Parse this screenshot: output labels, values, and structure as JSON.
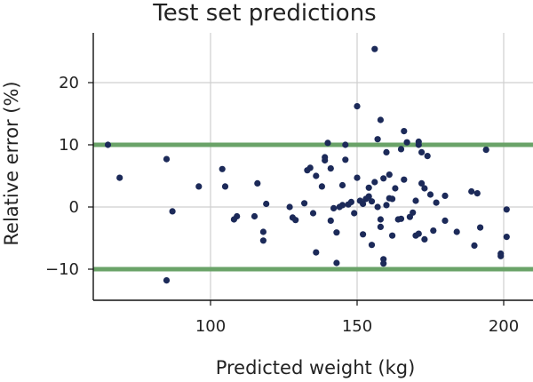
{
  "chart_data": {
    "type": "scatter",
    "title": "Test set predictions",
    "xlabel": "Predicted weight (kg)",
    "ylabel": "Relative error (%)",
    "xlim": [
      60,
      210
    ],
    "ylim": [
      -15,
      28
    ],
    "xticks": [
      100,
      150,
      200
    ],
    "yticks": [
      -10,
      0,
      10,
      20
    ],
    "xtick_labels": [
      "100",
      "150",
      "200"
    ],
    "ytick_labels": [
      "−10",
      "0",
      "10",
      "20"
    ],
    "grid": true,
    "reference_lines": [
      {
        "y": 10,
        "color": "#6aa368"
      },
      {
        "y": -10,
        "color": "#6aa368"
      }
    ],
    "colors": {
      "points": "#1c2a59",
      "reference": "#6aa368",
      "grid": "#cfcfcf",
      "axis": "#111111"
    },
    "points": [
      {
        "x": 65,
        "y": 10.0
      },
      {
        "x": 69,
        "y": 4.7
      },
      {
        "x": 85,
        "y": 7.7
      },
      {
        "x": 85,
        "y": -11.8
      },
      {
        "x": 87,
        "y": -0.7
      },
      {
        "x": 96,
        "y": 3.3
      },
      {
        "x": 104,
        "y": 6.1
      },
      {
        "x": 105,
        "y": 3.3
      },
      {
        "x": 108,
        "y": -2.0
      },
      {
        "x": 109,
        "y": -1.5
      },
      {
        "x": 115,
        "y": -1.5
      },
      {
        "x": 116,
        "y": 3.8
      },
      {
        "x": 118,
        "y": -5.4
      },
      {
        "x": 118,
        "y": -4.0
      },
      {
        "x": 119,
        "y": 0.5
      },
      {
        "x": 127,
        "y": 0.0
      },
      {
        "x": 128,
        "y": -1.7
      },
      {
        "x": 129,
        "y": -2.1
      },
      {
        "x": 132,
        "y": 0.6
      },
      {
        "x": 133,
        "y": 5.9
      },
      {
        "x": 134,
        "y": 6.3
      },
      {
        "x": 135,
        "y": -1.0
      },
      {
        "x": 136,
        "y": 5.0
      },
      {
        "x": 136,
        "y": -7.3
      },
      {
        "x": 138,
        "y": 3.3
      },
      {
        "x": 139,
        "y": 7.5
      },
      {
        "x": 139,
        "y": 8.0
      },
      {
        "x": 140,
        "y": 10.3
      },
      {
        "x": 141,
        "y": 6.2
      },
      {
        "x": 141,
        "y": -2.2
      },
      {
        "x": 142,
        "y": -0.2
      },
      {
        "x": 143,
        "y": -4.1
      },
      {
        "x": 143,
        "y": -9.0
      },
      {
        "x": 144,
        "y": 0.0
      },
      {
        "x": 145,
        "y": 3.5
      },
      {
        "x": 145,
        "y": 0.3
      },
      {
        "x": 146,
        "y": 7.6
      },
      {
        "x": 146,
        "y": 10.0
      },
      {
        "x": 147,
        "y": 0.4
      },
      {
        "x": 148,
        "y": 0.8
      },
      {
        "x": 149,
        "y": -1.0
      },
      {
        "x": 150,
        "y": 16.2
      },
      {
        "x": 150,
        "y": 4.7
      },
      {
        "x": 151,
        "y": 1.0
      },
      {
        "x": 152,
        "y": 0.5
      },
      {
        "x": 152,
        "y": -4.4
      },
      {
        "x": 153,
        "y": 1.3
      },
      {
        "x": 154,
        "y": 1.7
      },
      {
        "x": 154,
        "y": 3.1
      },
      {
        "x": 155,
        "y": 0.9
      },
      {
        "x": 155,
        "y": -6.1
      },
      {
        "x": 156,
        "y": 25.4
      },
      {
        "x": 156,
        "y": 4.0
      },
      {
        "x": 157,
        "y": 10.9
      },
      {
        "x": 157,
        "y": 0.0
      },
      {
        "x": 158,
        "y": -2.0
      },
      {
        "x": 158,
        "y": -3.2
      },
      {
        "x": 158,
        "y": 14.0
      },
      {
        "x": 159,
        "y": 4.6
      },
      {
        "x": 159,
        "y": -8.4
      },
      {
        "x": 159,
        "y": -9.1
      },
      {
        "x": 160,
        "y": 0.3
      },
      {
        "x": 160,
        "y": 8.8
      },
      {
        "x": 161,
        "y": 1.4
      },
      {
        "x": 161,
        "y": 5.2
      },
      {
        "x": 162,
        "y": 1.3
      },
      {
        "x": 162,
        "y": -4.6
      },
      {
        "x": 163,
        "y": 3.0
      },
      {
        "x": 164,
        "y": -2.0
      },
      {
        "x": 165,
        "y": 9.3
      },
      {
        "x": 165,
        "y": -1.9
      },
      {
        "x": 166,
        "y": 12.2
      },
      {
        "x": 166,
        "y": 4.4
      },
      {
        "x": 167,
        "y": 10.4
      },
      {
        "x": 168,
        "y": -1.6
      },
      {
        "x": 169,
        "y": -0.9
      },
      {
        "x": 170,
        "y": 1.0
      },
      {
        "x": 170,
        "y": -4.6
      },
      {
        "x": 171,
        "y": 10.5
      },
      {
        "x": 171,
        "y": 10.0
      },
      {
        "x": 171,
        "y": -4.3
      },
      {
        "x": 172,
        "y": 3.8
      },
      {
        "x": 172,
        "y": 8.8
      },
      {
        "x": 173,
        "y": 3.0
      },
      {
        "x": 173,
        "y": -5.2
      },
      {
        "x": 174,
        "y": 8.2
      },
      {
        "x": 175,
        "y": 2.0
      },
      {
        "x": 176,
        "y": -3.8
      },
      {
        "x": 177,
        "y": 0.7
      },
      {
        "x": 180,
        "y": 1.8
      },
      {
        "x": 180,
        "y": -2.2
      },
      {
        "x": 184,
        "y": -4.0
      },
      {
        "x": 189,
        "y": 2.5
      },
      {
        "x": 190,
        "y": -6.2
      },
      {
        "x": 191,
        "y": 2.2
      },
      {
        "x": 192,
        "y": -3.3
      },
      {
        "x": 194,
        "y": 9.2
      },
      {
        "x": 199,
        "y": -7.5
      },
      {
        "x": 199,
        "y": -7.9
      },
      {
        "x": 201,
        "y": -0.4
      },
      {
        "x": 201,
        "y": -4.8
      }
    ]
  }
}
